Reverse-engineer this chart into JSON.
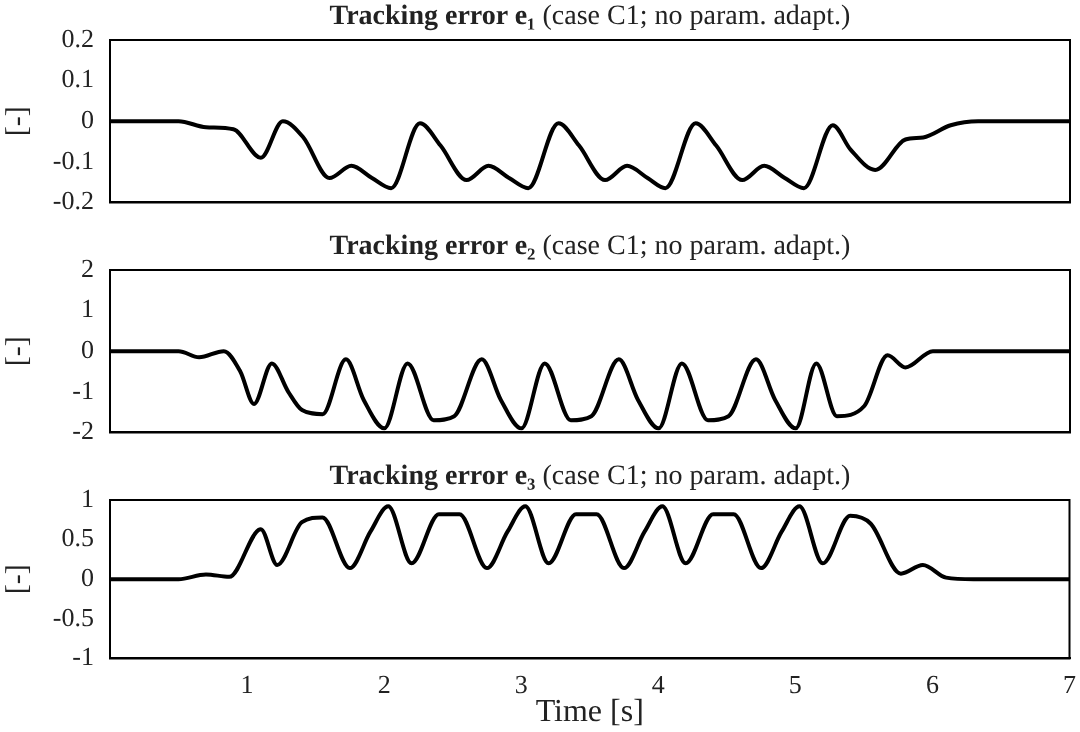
{
  "chart_data": [
    {
      "type": "line",
      "title": "Tracking error e₁ (case C1; no param. adapt.)",
      "ylabel": "[-]",
      "xlim": [
        0,
        7
      ],
      "xticks": [
        1,
        2,
        3,
        4,
        5,
        6,
        7
      ],
      "ylim": [
        -0.2,
        0.2
      ],
      "yticks": [
        -0.2,
        -0.1,
        0,
        0.1,
        0.2
      ],
      "tick_labels": "y",
      "grid": false,
      "marker": "none",
      "series": [
        {
          "color": "#000000",
          "x": [
            0,
            0.5,
            0.7,
            0.9,
            1.1,
            1.26,
            1.41,
            1.6,
            1.76,
            1.91,
            2.05,
            2.26,
            2.41,
            2.6,
            2.76,
            2.91,
            3.05,
            3.27,
            3.42,
            3.61,
            3.77,
            3.92,
            4.05,
            4.27,
            4.42,
            4.61,
            4.77,
            4.92,
            5.06,
            5.27,
            5.4,
            5.58,
            5.8,
            5.93,
            6.13,
            6.33,
            7
          ],
          "values": [
            0,
            0,
            -0.015,
            -0.02,
            -0.09,
            0,
            -0.04,
            -0.14,
            -0.11,
            -0.14,
            -0.165,
            -0.005,
            -0.06,
            -0.145,
            -0.11,
            -0.14,
            -0.165,
            -0.005,
            -0.06,
            -0.145,
            -0.11,
            -0.14,
            -0.165,
            -0.005,
            -0.06,
            -0.145,
            -0.11,
            -0.14,
            -0.165,
            -0.01,
            -0.07,
            -0.12,
            -0.045,
            -0.04,
            -0.01,
            0,
            0
          ]
        }
      ]
    },
    {
      "type": "line",
      "title": "Tracking error e₂ (case C1; no param. adapt.)",
      "ylabel": "[-]",
      "xlim": [
        0,
        7
      ],
      "xticks": [
        1,
        2,
        3,
        4,
        5,
        6,
        7
      ],
      "ylim": [
        -2,
        2
      ],
      "yticks": [
        -2,
        -1,
        0,
        1,
        2
      ],
      "tick_labels": "y",
      "grid": false,
      "marker": "none",
      "series": [
        {
          "color": "#000000",
          "x": [
            0,
            0.5,
            0.65,
            0.83,
            0.95,
            1.05,
            1.18,
            1.3,
            1.4,
            1.55,
            1.72,
            1.85,
            2.0,
            2.17,
            2.36,
            2.51,
            2.71,
            2.85,
            3.0,
            3.17,
            3.36,
            3.51,
            3.71,
            3.85,
            4.0,
            4.17,
            4.36,
            4.51,
            4.71,
            4.85,
            5.0,
            5.15,
            5.3,
            5.5,
            5.67,
            5.8,
            6.0,
            7
          ],
          "values": [
            0,
            0,
            -0.15,
            0,
            -0.5,
            -1.3,
            -0.3,
            -1.0,
            -1.45,
            -1.55,
            -0.2,
            -1.2,
            -1.9,
            -0.3,
            -1.7,
            -1.6,
            -0.2,
            -1.2,
            -1.9,
            -0.3,
            -1.7,
            -1.6,
            -0.2,
            -1.2,
            -1.9,
            -0.3,
            -1.7,
            -1.6,
            -0.2,
            -1.2,
            -1.9,
            -0.3,
            -1.6,
            -1.35,
            -0.1,
            -0.4,
            0,
            0
          ]
        }
      ]
    },
    {
      "type": "line",
      "title": "Tracking error e₃ (case C1; no param. adapt.)",
      "xlabel": "Time [s]",
      "ylabel": "[-]",
      "xlim": [
        0,
        7
      ],
      "xticks": [
        1,
        2,
        3,
        4,
        5,
        6,
        7
      ],
      "ylim": [
        -1,
        1
      ],
      "yticks": [
        -1,
        -0.5,
        0,
        0.5,
        1
      ],
      "grid": false,
      "marker": "none",
      "series": [
        {
          "color": "#000000",
          "x": [
            0,
            0.5,
            0.7,
            0.87,
            1.1,
            1.22,
            1.4,
            1.55,
            1.75,
            1.9,
            2.03,
            2.2,
            2.4,
            2.55,
            2.75,
            2.9,
            3.03,
            3.2,
            3.4,
            3.55,
            3.75,
            3.9,
            4.03,
            4.2,
            4.4,
            4.55,
            4.75,
            4.9,
            5.03,
            5.2,
            5.4,
            5.55,
            5.77,
            5.93,
            6.1,
            6.3,
            7
          ],
          "values": [
            0,
            0,
            0.06,
            0.03,
            0.63,
            0.18,
            0.72,
            0.78,
            0.14,
            0.6,
            0.92,
            0.2,
            0.82,
            0.82,
            0.14,
            0.6,
            0.92,
            0.2,
            0.82,
            0.82,
            0.14,
            0.6,
            0.92,
            0.2,
            0.82,
            0.82,
            0.14,
            0.6,
            0.92,
            0.2,
            0.8,
            0.7,
            0.07,
            0.18,
            0.02,
            0,
            0
          ]
        }
      ]
    }
  ]
}
